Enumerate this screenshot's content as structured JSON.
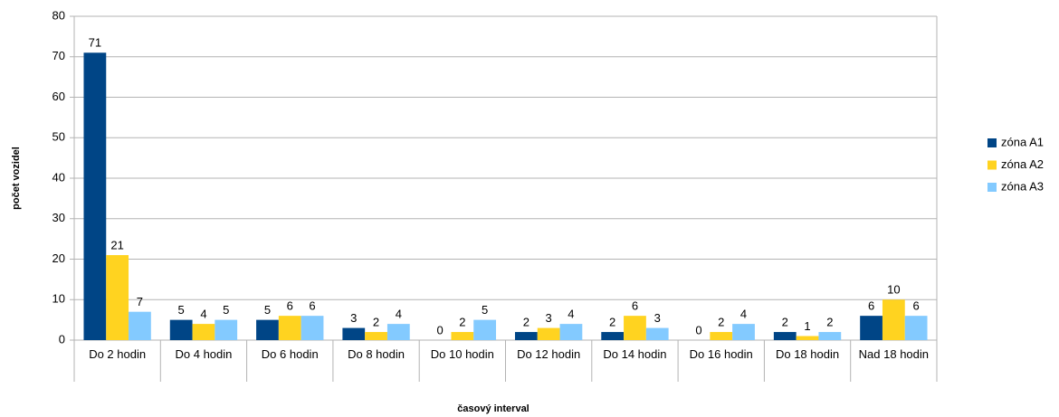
{
  "chart_data": {
    "type": "bar",
    "categories": [
      "Do 2 hodin",
      "Do 4 hodin",
      "Do 6 hodin",
      "Do 8 hodin",
      "Do 10 hodin",
      "Do 12 hodin",
      "Do 14 hodin",
      "Do 16 hodin",
      "Do 18 hodin",
      "Nad 18 hodin"
    ],
    "series": [
      {
        "name": "zóna A1",
        "color": "#004586",
        "values": [
          71,
          5,
          5,
          3,
          0,
          2,
          2,
          0,
          2,
          6
        ]
      },
      {
        "name": "zóna A2",
        "color": "#ffd320",
        "values": [
          21,
          4,
          6,
          2,
          2,
          3,
          6,
          2,
          1,
          10
        ]
      },
      {
        "name": "zóna A3",
        "color": "#83caff",
        "values": [
          7,
          5,
          6,
          4,
          5,
          4,
          3,
          4,
          2,
          6
        ]
      }
    ],
    "x_label": "časový interval",
    "y_label": "počet vozidel",
    "ylim": [
      0,
      80
    ],
    "yticks": [
      0,
      10,
      20,
      30,
      40,
      50,
      60,
      70,
      80
    ],
    "grid": true,
    "legend": "right"
  }
}
